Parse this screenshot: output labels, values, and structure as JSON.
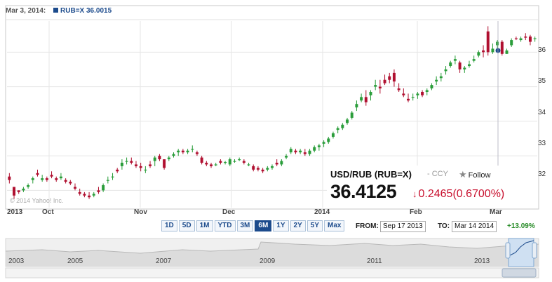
{
  "header": {
    "date": "Mar 3, 2014:",
    "series": "RUB=X 36.0015"
  },
  "quote": {
    "symbol": "USD/RUB (RUB=X)",
    "ccy": "- CCY",
    "follow": "Follow",
    "price": "36.4125",
    "change": "0.2465",
    "change_pct": "(0.6700%)"
  },
  "watermark": "© 2014 Yahoo! Inc.",
  "x_axis_labels": [
    "2013",
    "Oct",
    "Nov",
    "Dec",
    "2014",
    "Feb",
    "Mar"
  ],
  "y_axis_labels": [
    "36",
    "35",
    "34",
    "33",
    "32"
  ],
  "ranges": [
    "1D",
    "5D",
    "1M",
    "YTD",
    "3M",
    "6M",
    "1Y",
    "2Y",
    "5Y",
    "Max"
  ],
  "active_range": "6M",
  "from_label": "FROM:",
  "from_date": "Sep 17 2013",
  "to_label": "TO:",
  "to_date": "Mar 14 2014",
  "period_change": "+13.09%",
  "navigator_years": [
    "2003",
    "2005",
    "2007",
    "2009",
    "2011",
    "2013"
  ],
  "colors": {
    "up": "#2a9d3a",
    "down": "#b01030",
    "accent": "#1c4b8c",
    "change": "#c8102e",
    "positive": "#2a8d2a"
  },
  "chart_data": {
    "type": "candlestick",
    "ylim": [
      31.5,
      36.9
    ],
    "candles": [
      [
        32.4,
        32.5,
        32.2,
        32.3
      ],
      [
        32.1,
        32.1,
        31.75,
        31.85
      ],
      [
        32.0,
        32.0,
        31.9,
        31.95
      ],
      [
        32.0,
        32.1,
        31.95,
        32.05
      ],
      [
        32.1,
        32.2,
        32.05,
        32.15
      ],
      [
        32.3,
        32.4,
        32.2,
        32.35
      ],
      [
        32.5,
        32.6,
        32.4,
        32.45
      ],
      [
        32.3,
        32.45,
        32.25,
        32.35
      ],
      [
        32.35,
        32.4,
        32.25,
        32.3
      ],
      [
        32.45,
        32.55,
        32.35,
        32.4
      ],
      [
        32.35,
        32.4,
        32.25,
        32.3
      ],
      [
        32.35,
        32.5,
        32.3,
        32.4
      ],
      [
        32.3,
        32.35,
        32.2,
        32.25
      ],
      [
        32.25,
        32.3,
        32.15,
        32.2
      ],
      [
        32.1,
        32.2,
        32.0,
        32.05
      ],
      [
        31.95,
        32.05,
        31.85,
        31.9
      ],
      [
        31.9,
        31.95,
        31.8,
        31.85
      ],
      [
        31.85,
        31.95,
        31.75,
        31.8
      ],
      [
        31.85,
        31.95,
        31.8,
        31.9
      ],
      [
        32.0,
        32.1,
        31.9,
        31.95
      ],
      [
        32.0,
        32.2,
        31.95,
        32.15
      ],
      [
        32.3,
        32.4,
        32.2,
        32.3
      ],
      [
        32.4,
        32.5,
        32.3,
        32.4
      ],
      [
        32.6,
        32.65,
        32.5,
        32.55
      ],
      [
        32.7,
        32.9,
        32.6,
        32.8
      ],
      [
        32.85,
        32.95,
        32.75,
        32.85
      ],
      [
        32.85,
        32.95,
        32.75,
        32.8
      ],
      [
        32.75,
        32.85,
        32.65,
        32.7
      ],
      [
        32.7,
        32.8,
        32.55,
        32.65
      ],
      [
        32.6,
        32.7,
        32.5,
        32.6
      ],
      [
        32.75,
        32.85,
        32.65,
        32.7
      ],
      [
        32.85,
        33.0,
        32.7,
        32.95
      ],
      [
        33.0,
        33.05,
        32.85,
        32.9
      ],
      [
        32.9,
        32.9,
        32.6,
        32.65
      ],
      [
        32.9,
        33.0,
        32.85,
        32.95
      ],
      [
        33.0,
        33.1,
        32.95,
        33.05
      ],
      [
        33.1,
        33.2,
        33.0,
        33.15
      ],
      [
        33.15,
        33.2,
        33.05,
        33.1
      ],
      [
        33.1,
        33.2,
        33.05,
        33.15
      ],
      [
        33.2,
        33.3,
        33.1,
        33.2
      ],
      [
        33.1,
        33.15,
        33.0,
        33.05
      ],
      [
        32.95,
        33.0,
        32.75,
        32.8
      ],
      [
        32.8,
        32.85,
        32.7,
        32.75
      ],
      [
        32.75,
        32.8,
        32.65,
        32.7
      ],
      [
        32.75,
        32.8,
        32.7,
        32.75
      ],
      [
        32.85,
        32.9,
        32.75,
        32.8
      ],
      [
        32.8,
        32.85,
        32.75,
        32.82
      ],
      [
        32.75,
        32.95,
        32.7,
        32.9
      ],
      [
        32.85,
        32.9,
        32.8,
        32.85
      ],
      [
        32.9,
        32.95,
        32.85,
        32.9
      ],
      [
        32.85,
        32.9,
        32.75,
        32.8
      ],
      [
        32.75,
        32.8,
        32.7,
        32.75
      ],
      [
        32.7,
        32.75,
        32.55,
        32.6
      ],
      [
        32.65,
        32.7,
        32.55,
        32.6
      ],
      [
        32.6,
        32.65,
        32.5,
        32.55
      ],
      [
        32.6,
        32.7,
        32.55,
        32.65
      ],
      [
        32.65,
        32.75,
        32.6,
        32.7
      ],
      [
        32.8,
        32.9,
        32.7,
        32.75
      ],
      [
        32.75,
        32.9,
        32.7,
        32.85
      ],
      [
        32.95,
        33.05,
        32.9,
        33.0
      ],
      [
        33.1,
        33.25,
        33.05,
        33.2
      ],
      [
        33.15,
        33.2,
        33.05,
        33.1
      ],
      [
        33.1,
        33.2,
        33.05,
        33.15
      ],
      [
        33.1,
        33.2,
        33.0,
        33.05
      ],
      [
        33.05,
        33.2,
        33.0,
        33.15
      ],
      [
        33.15,
        33.3,
        33.1,
        33.25
      ],
      [
        33.25,
        33.35,
        33.15,
        33.3
      ],
      [
        33.35,
        33.45,
        33.25,
        33.4
      ],
      [
        33.4,
        33.55,
        33.35,
        33.5
      ],
      [
        33.55,
        33.7,
        33.5,
        33.65
      ],
      [
        33.75,
        33.85,
        33.65,
        33.8
      ],
      [
        33.8,
        33.95,
        33.75,
        33.9
      ],
      [
        33.95,
        34.1,
        33.9,
        34.05
      ],
      [
        34.1,
        34.3,
        34.05,
        34.25
      ],
      [
        34.4,
        34.6,
        34.3,
        34.5
      ],
      [
        34.6,
        34.8,
        34.55,
        34.7
      ],
      [
        34.7,
        34.9,
        34.45,
        34.55
      ],
      [
        34.75,
        34.9,
        34.6,
        34.85
      ],
      [
        35.0,
        35.2,
        34.9,
        35.05
      ],
      [
        35.0,
        35.2,
        34.8,
        34.95
      ],
      [
        35.2,
        35.35,
        35.05,
        35.1
      ],
      [
        35.3,
        35.4,
        35.1,
        35.2
      ],
      [
        35.4,
        35.5,
        35.0,
        35.15
      ],
      [
        34.95,
        35.1,
        34.85,
        34.9
      ],
      [
        34.8,
        34.95,
        34.7,
        34.75
      ],
      [
        34.65,
        34.8,
        34.55,
        34.6
      ],
      [
        34.7,
        34.8,
        34.6,
        34.7
      ],
      [
        34.75,
        34.85,
        34.65,
        34.8
      ],
      [
        34.85,
        34.9,
        34.7,
        34.75
      ],
      [
        34.85,
        34.95,
        34.75,
        34.9
      ],
      [
        34.95,
        35.1,
        34.9,
        35.05
      ],
      [
        35.15,
        35.3,
        35.05,
        35.2
      ],
      [
        35.25,
        35.4,
        35.15,
        35.3
      ],
      [
        35.45,
        35.6,
        35.35,
        35.5
      ],
      [
        35.6,
        35.75,
        35.55,
        35.7
      ],
      [
        35.75,
        35.9,
        35.65,
        35.8
      ],
      [
        35.7,
        35.75,
        35.4,
        35.5
      ],
      [
        35.5,
        35.6,
        35.4,
        35.55
      ],
      [
        35.6,
        35.75,
        35.55,
        35.65
      ],
      [
        35.75,
        35.9,
        35.7,
        35.8
      ],
      [
        35.9,
        36.05,
        35.85,
        36.0
      ],
      [
        36.05,
        36.2,
        35.85,
        36.0
      ],
      [
        36.6,
        36.75,
        35.9,
        36.0
      ],
      [
        36.0,
        36.25,
        35.95,
        36.1
      ],
      [
        36.2,
        36.35,
        36.0,
        36.3
      ],
      [
        36.3,
        36.35,
        35.9,
        35.95
      ],
      [
        35.95,
        36.1,
        35.95,
        36.05
      ],
      [
        36.2,
        36.4,
        36.15,
        36.35
      ],
      [
        36.4,
        36.45,
        36.35,
        36.38
      ],
      [
        36.35,
        36.45,
        36.3,
        36.4
      ],
      [
        36.45,
        36.55,
        36.35,
        36.42
      ],
      [
        36.45,
        36.5,
        36.2,
        36.3
      ],
      [
        36.4,
        36.45,
        36.3,
        36.4
      ]
    ]
  }
}
